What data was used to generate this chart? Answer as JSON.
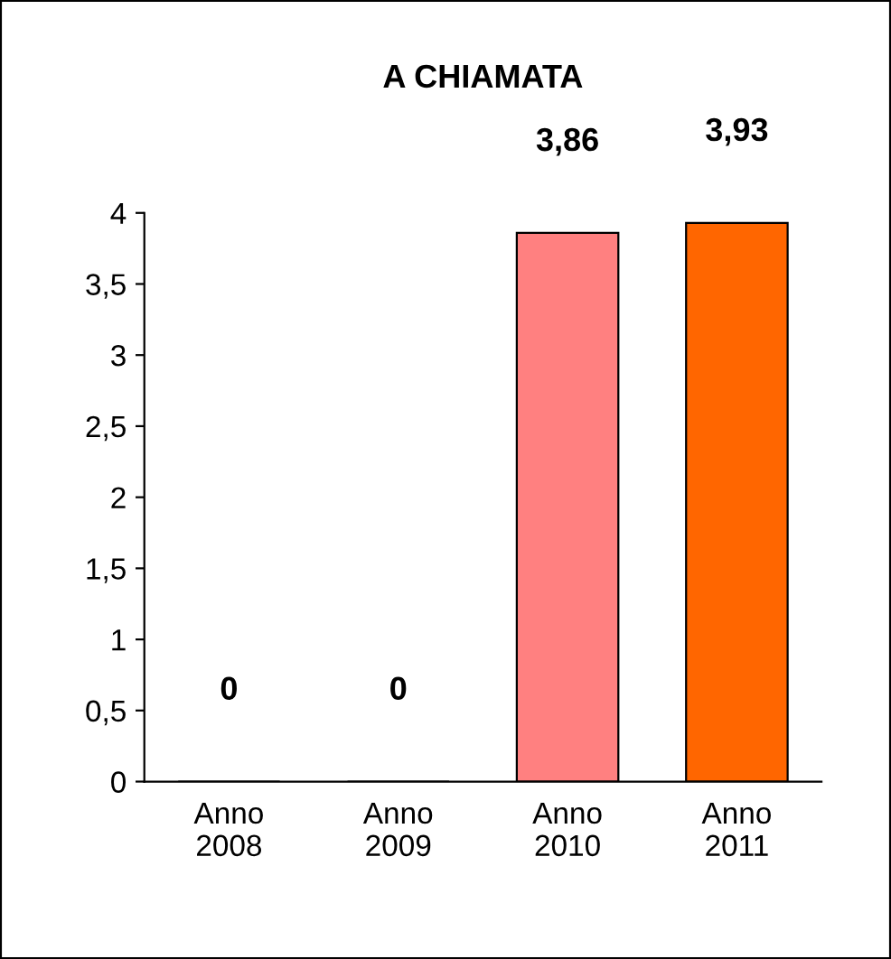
{
  "chart_data": {
    "type": "bar",
    "title": "A CHIAMATA",
    "categories": [
      "Anno\n2008",
      "Anno\n2009",
      "Anno\n2010",
      "Anno\n2011"
    ],
    "values": [
      0,
      0,
      3.86,
      3.93
    ],
    "colors": [
      "#33cc33",
      "#33cccc",
      "#ff8080",
      "#ff6600"
    ],
    "value_labels": [
      "0",
      "0",
      "3,86",
      "3,93"
    ],
    "ylim": [
      0,
      4
    ],
    "yticks": [
      0,
      {
        "value": 0.5,
        "label": "0,5"
      },
      1,
      {
        "value": 1.5,
        "label": "1,5"
      },
      2,
      {
        "value": 2.5,
        "label": "2,5"
      },
      3,
      {
        "value": 3.5,
        "label": "3,5"
      },
      4
    ],
    "grid": false,
    "legend": false
  }
}
